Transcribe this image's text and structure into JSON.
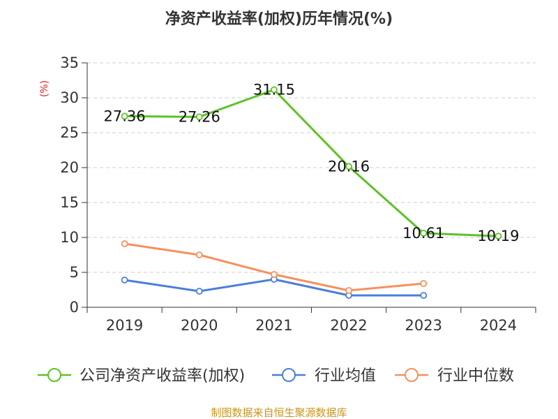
{
  "chart_data": {
    "type": "line",
    "title": "净资产收益率(加权)历年情况(%)",
    "ylabel": "(%)",
    "categories": [
      "2019",
      "2020",
      "2021",
      "2022",
      "2023",
      "2024"
    ],
    "yticks": [
      "0",
      "5",
      "10",
      "15",
      "20",
      "25",
      "30",
      "35"
    ],
    "ylim": [
      0,
      35
    ],
    "grid": true,
    "legend_position": "bottom",
    "series": [
      {
        "name": "公司净资产收益率(加权)",
        "color": "#5cc227",
        "values": [
          27.36,
          27.26,
          31.15,
          20.16,
          10.61,
          10.19
        ],
        "labels": [
          "27.36",
          "27.26",
          "31.15",
          "20.16",
          "10.61",
          "10.19"
        ]
      },
      {
        "name": "行业均值",
        "color": "#4a7fd8",
        "values": [
          3.9,
          2.3,
          4.0,
          1.7,
          1.7,
          null
        ]
      },
      {
        "name": "行业中位数",
        "color": "#f7905a",
        "values": [
          9.1,
          7.5,
          4.7,
          2.4,
          3.4,
          null
        ]
      }
    ]
  },
  "source": "制图数据来自恒生聚源数据库"
}
